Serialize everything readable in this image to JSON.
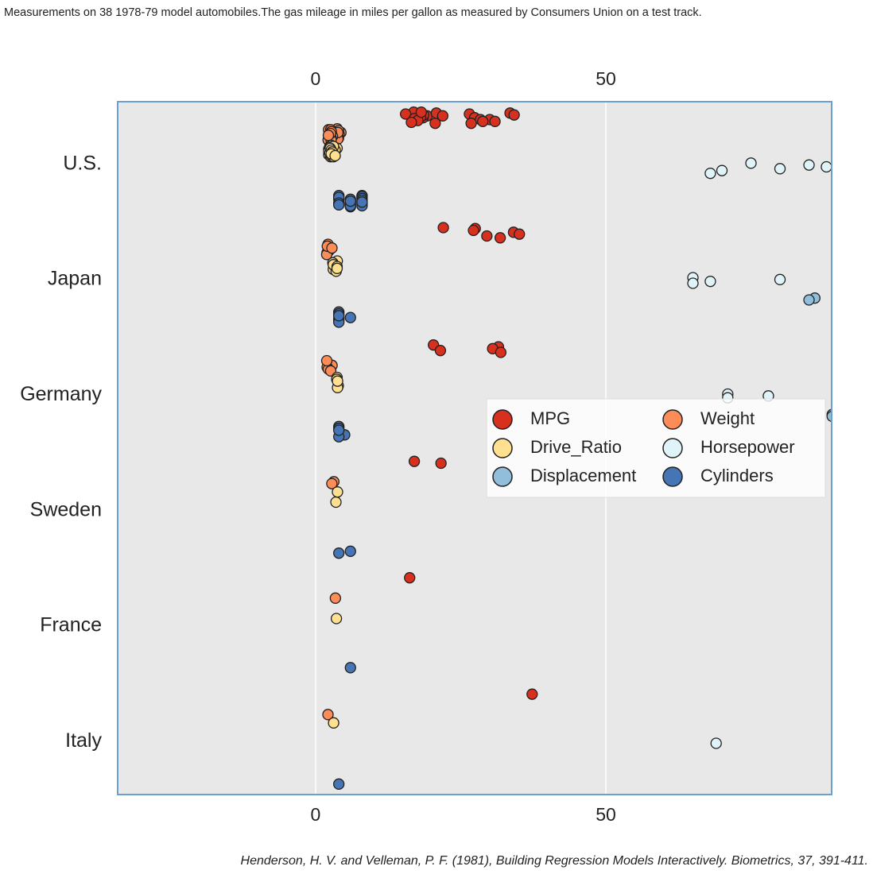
{
  "chart_data": {
    "type": "strip",
    "orientation": "horizontal",
    "title": "Measurements on 38 1978-79 model automobiles.The gas mileage in miles per gallon as measured by Consumers Union on a test track.",
    "caption": "Henderson, H. V. and Velleman, P. F. (1981), Building Regression Models Interactively. Biometrics, 37, 391-411.",
    "categories": [
      "U.S.",
      "Japan",
      "Germany",
      "Sweden",
      "France",
      "Italy"
    ],
    "xlim": [
      -34.1,
      88.9
    ],
    "xticks": [
      0,
      50
    ],
    "grid": true,
    "legend": "center right",
    "series": [
      {
        "name": "MPG",
        "color": "#d7301f",
        "values": [
          [
            16.9,
            15.5,
            19.2,
            18.5,
            30.0,
            30.9,
            20.6,
            20.8,
            18.6,
            18.1,
            17.0,
            17.6,
            16.5,
            18.2,
            26.5,
            21.9,
            27.4,
            28.4,
            28.8,
            26.8,
            33.5,
            34.2
          ],
          [
            27.5,
            27.2,
            34.1,
            35.1,
            29.5,
            31.8,
            22.0
          ],
          [
            20.3,
            31.5,
            30.5,
            21.5,
            31.9
          ],
          [
            17.0,
            21.6
          ],
          [
            16.2
          ],
          [
            37.3
          ]
        ]
      },
      {
        "name": "Weight",
        "color": "#fc8d59",
        "values": [
          [
            4.36,
            4.054,
            3.605,
            3.94,
            2.155,
            2.23,
            3.38,
            3.07,
            3.62,
            3.41,
            3.84,
            3.725,
            3.955,
            3.83,
            2.585,
            2.91,
            2.67,
            2.67,
            2.595,
            2.7,
            2.556,
            2.2
          ],
          [
            2.56,
            2.3,
            1.975,
            1.915,
            2.135,
            2.02,
            2.815
          ],
          [
            2.83,
            1.99,
            2.19,
            2.6,
            1.925
          ],
          [
            3.14,
            2.795
          ],
          [
            3.41
          ],
          [
            2.13
          ]
        ]
      },
      {
        "name": "Drive_Ratio",
        "color": "#fee090",
        "values": [
          [
            2.73,
            2.26,
            2.56,
            2.45,
            3.7,
            3.37,
            2.73,
            3.08,
            2.71,
            2.73,
            2.41,
            2.26,
            2.26,
            2.45,
            3.08,
            3.08,
            3.08,
            2.53,
            2.69,
            2.84,
            2.69,
            3.37
          ],
          [
            3.05,
            3.54,
            3.73,
            2.97,
            3.05,
            3.7,
            3.7
          ],
          [
            3.9,
            3.78,
            3.7,
            3.64,
            3.78
          ],
          [
            3.5,
            3.77
          ],
          [
            3.58
          ],
          [
            3.1
          ]
        ]
      },
      {
        "name": "Horsepower",
        "color": "#e0f3f8",
        "values": [
          [
            68,
            75,
            85,
            88,
            80,
            70
          ],
          [
            65,
            80,
            68,
            65
          ],
          [
            71,
            78,
            71
          ],
          [],
          [],
          [
            69
          ]
        ]
      },
      {
        "name": "Displacement",
        "color": "#91bfdb",
        "values": [
          [],
          [
            86,
            85
          ],
          [
            89,
            89
          ],
          [],
          [],
          []
        ]
      },
      {
        "name": "Cylinders",
        "color": "#4575b4",
        "values": [
          [
            8,
            8,
            8,
            8,
            4,
            4,
            6,
            6,
            6,
            6,
            8,
            8,
            8,
            8,
            4,
            6,
            4,
            4,
            6,
            6,
            4,
            4
          ],
          [
            4,
            4,
            4,
            4,
            4,
            4,
            6
          ],
          [
            5,
            4,
            4,
            4,
            4
          ],
          [
            6,
            4
          ],
          [
            6
          ],
          [
            4
          ]
        ]
      }
    ]
  }
}
